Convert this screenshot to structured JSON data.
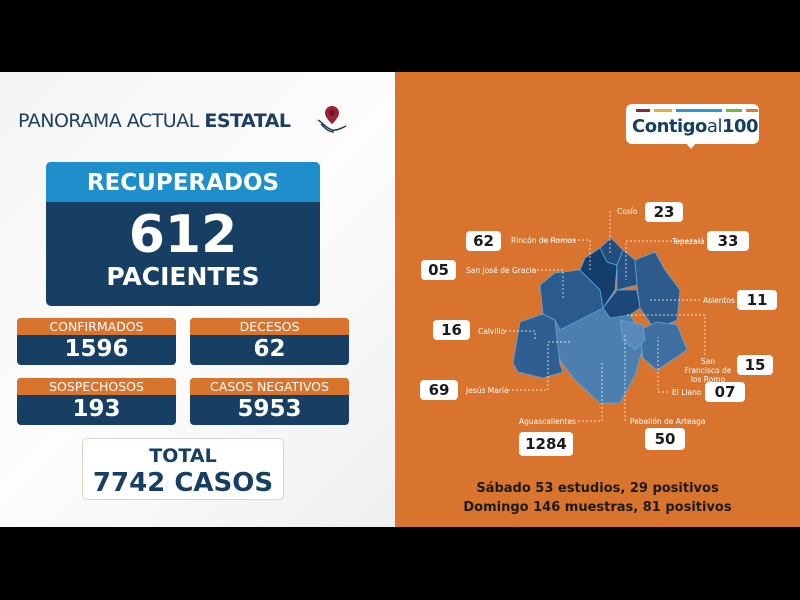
{
  "left": {
    "title_light": "PANORAMA ACTUAL",
    "title_bold": "ESTATAL",
    "recuperados": {
      "label": "RECUPERADOS",
      "value": "612",
      "unit": "PACIENTES"
    },
    "stats": [
      {
        "label": "CONFIRMADOS",
        "value": "1596"
      },
      {
        "label": "DECESOS",
        "value": "62"
      },
      {
        "label": "SOSPECHOSOS",
        "value": "193"
      },
      {
        "label": "CASOS NEGATIVOS",
        "value": "5953"
      }
    ],
    "total": {
      "label": "TOTAL",
      "value": "7742 CASOS"
    }
  },
  "right": {
    "logo": {
      "text_bold": "Contigo",
      "text_light": "al",
      "text_num": "100",
      "bar_colors": [
        "#8d2a3a",
        "#e0b040",
        "#2a9ad6",
        "#6fb844",
        "#e07a3a"
      ]
    },
    "municipalities": [
      {
        "name": "Cosío",
        "value": "23"
      },
      {
        "name": "Rincón de Romos",
        "value": "62"
      },
      {
        "name": "Tepezalá",
        "value": "33"
      },
      {
        "name": "San José de Gracia",
        "value": "05"
      },
      {
        "name": "Asientos",
        "value": "11"
      },
      {
        "name": "Calvillo",
        "value": "16"
      },
      {
        "name": "San Francisco de los Romo",
        "value": "15"
      },
      {
        "name": "Jesús María",
        "value": "69"
      },
      {
        "name": "El Llano",
        "value": "07"
      },
      {
        "name": "Aguascalientes",
        "value": "1284"
      },
      {
        "name": "Pabellón de Arteaga",
        "value": "50"
      }
    ],
    "footer": [
      "Sábado 53 estudios, 29 positivos",
      "Domingo 146 muestras, 81 positivos"
    ]
  },
  "colors": {
    "orange": "#d9742f",
    "navy": "#173f63",
    "blue": "#1f8fcb"
  }
}
